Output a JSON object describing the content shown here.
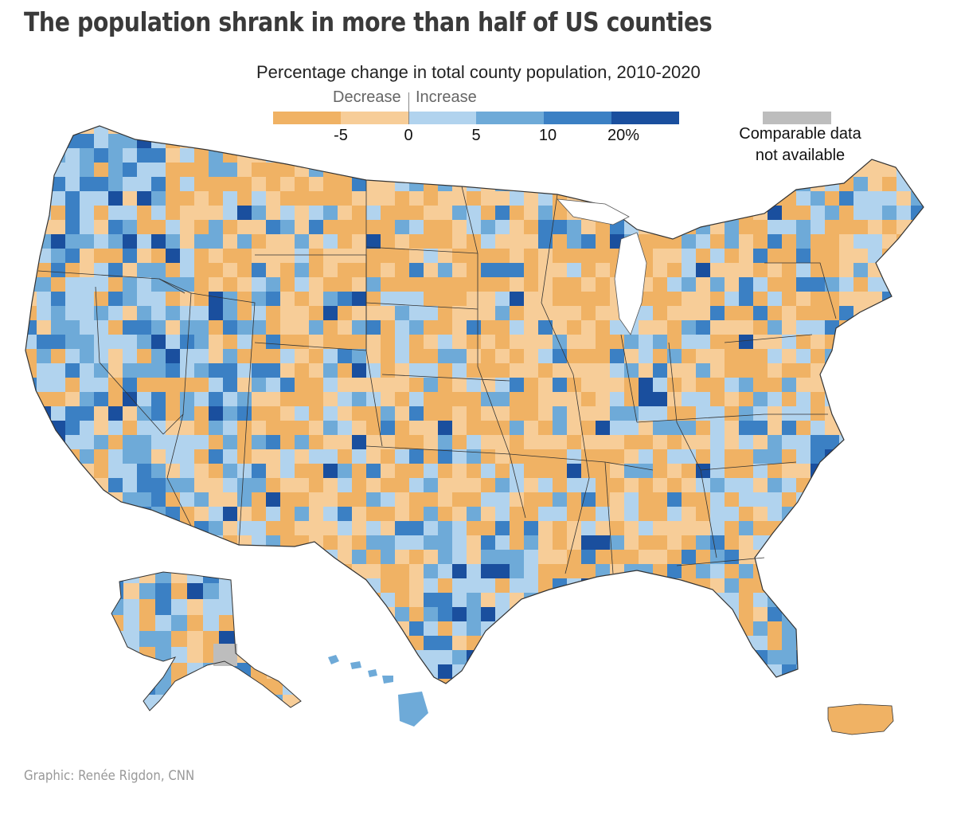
{
  "headline": "The population shrank in more than half of US counties",
  "subtitle": "Percentage change in total county population, 2010-2020",
  "legend": {
    "decrease_label": "Decrease",
    "increase_label": "Increase",
    "bins": [
      {
        "range": "below -5",
        "color": "#f0b264"
      },
      {
        "range": "-5 to 0",
        "color": "#f7cd98"
      },
      {
        "range": "0 to 5",
        "color": "#b1d3ee"
      },
      {
        "range": "5 to 10",
        "color": "#6eaad8"
      },
      {
        "range": "10 to 20",
        "color": "#3b80c4"
      },
      {
        "range": "20+",
        "color": "#1a4f9e"
      }
    ],
    "tick_labels": [
      "-5",
      "0",
      "5",
      "10",
      "20%"
    ],
    "na_color": "#bdbdbd",
    "na_label_line1": "Comparable data",
    "na_label_line2": "not available"
  },
  "regions": [
    "Contiguous US",
    "Alaska",
    "Hawaii",
    "Puerto Rico"
  ],
  "credit": "Graphic: Renée Rigdon, CNN"
}
